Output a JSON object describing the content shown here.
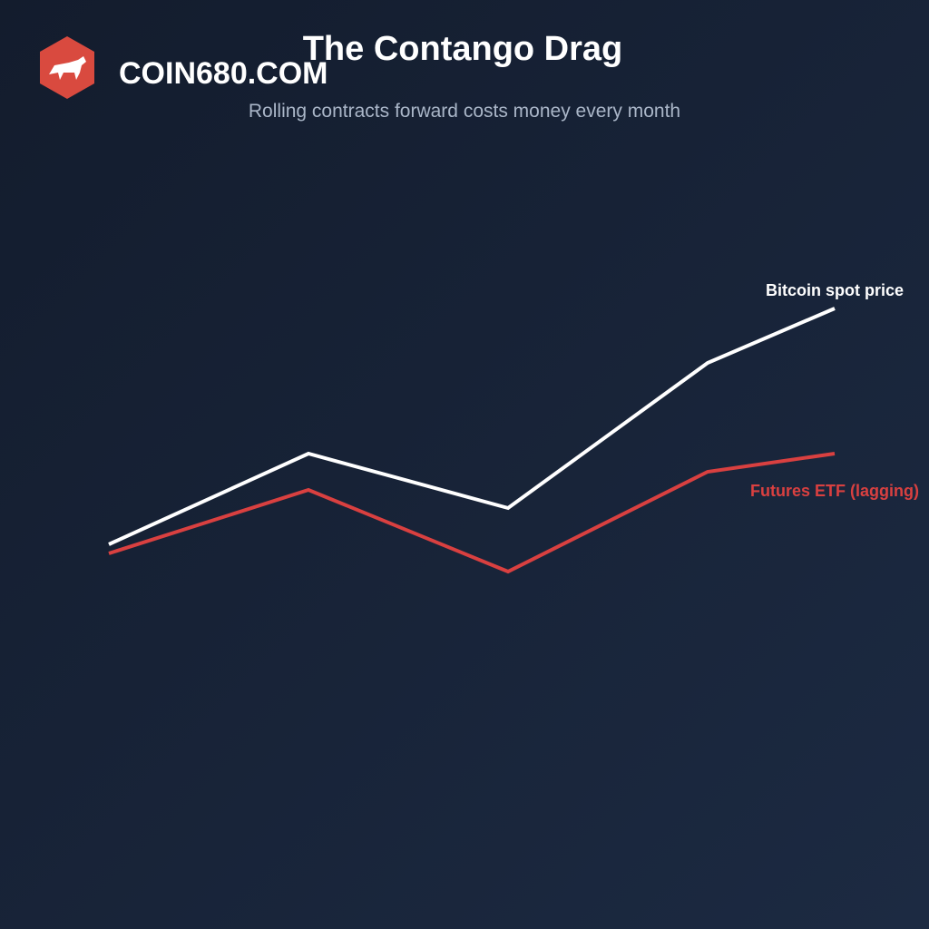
{
  "brand": "COIN680.COM",
  "chart_data": {
    "type": "line",
    "title": "The Contango Drag",
    "subtitle": "Rolling contracts forward costs money every month",
    "x": [
      0,
      2.2,
      4.4,
      6.6,
      8
    ],
    "xlim": [
      0,
      8
    ],
    "ylim": [
      0,
      100
    ],
    "series": [
      {
        "name": "Bitcoin spot price",
        "color": "#ffffff",
        "values": [
          25,
          50,
          35,
          75,
          90
        ]
      },
      {
        "name": "Futures ETF (lagging)",
        "color": "#d94040",
        "values": [
          22.5,
          40,
          17.5,
          45,
          50
        ]
      }
    ]
  }
}
